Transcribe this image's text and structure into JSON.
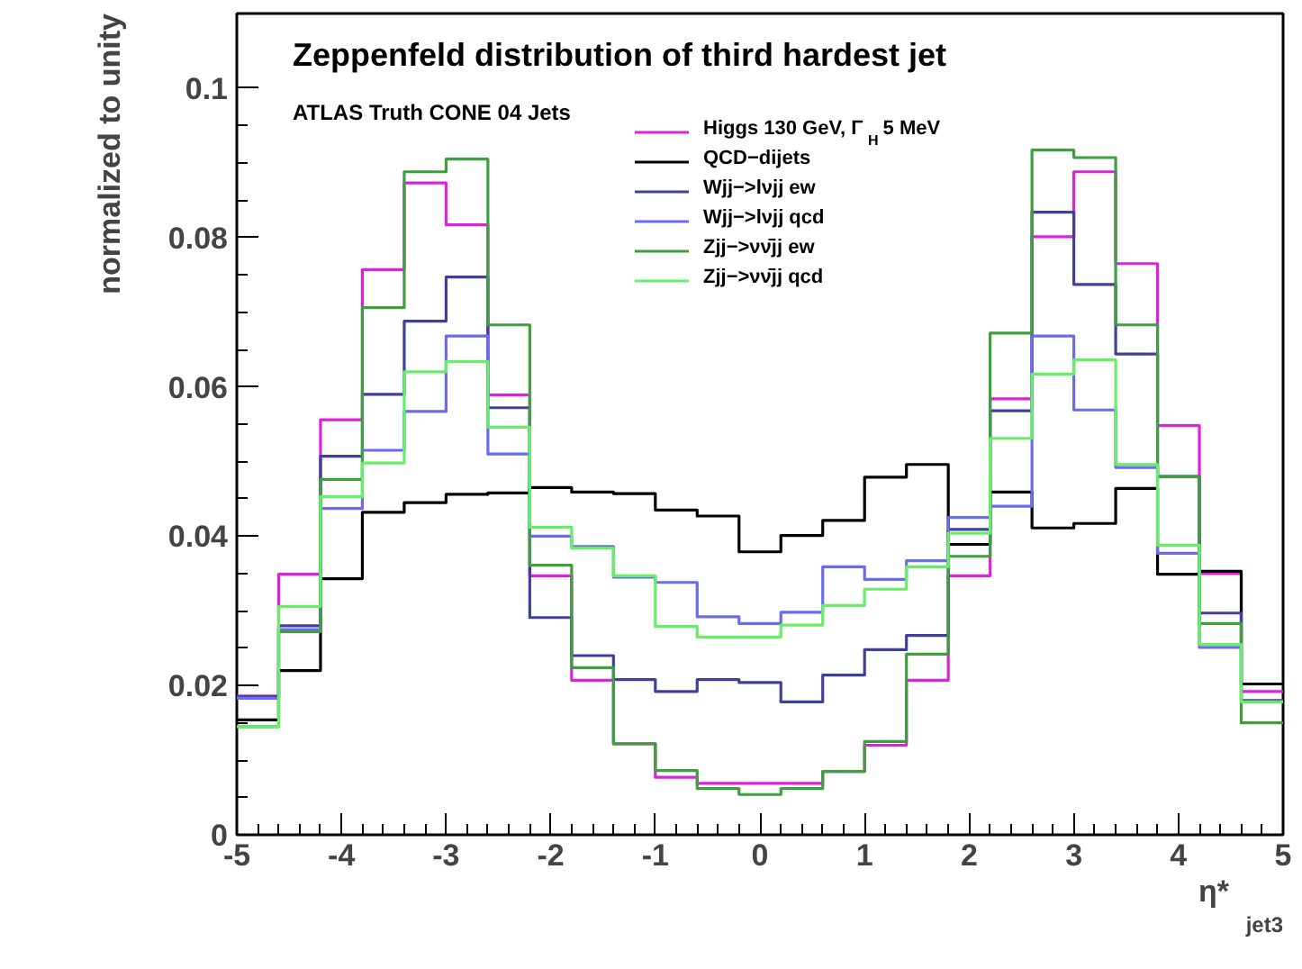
{
  "chart_data": {
    "type": "histogram",
    "title": "Zeppenfeld distribution of third hardest jet",
    "subtitle": "ATLAS Truth CONE 04 Jets",
    "xlabel": "η*$_{jet3}$",
    "ylabel": "normalized to unity",
    "bins": [
      -5,
      -4.6,
      -4.2,
      -3.8,
      -3.4,
      -3.0,
      -2.6,
      -2.2,
      -1.8,
      -1.4,
      -1.0,
      -0.6,
      -0.2,
      0.2,
      0.6,
      1.0,
      1.4,
      1.8,
      2.2,
      2.6,
      3.0,
      3.4,
      3.8,
      4.2,
      4.6,
      5
    ],
    "series": [
      {
        "name": "Higgs 130 GeV, Γ$_{H}$ 5 MeV",
        "color": "#dd22dd",
        "values": [
          0.0186,
          0.0349,
          0.0556,
          0.0757,
          0.0873,
          0.0817,
          0.0589,
          0.0347,
          0.0207,
          0.0122,
          0.0077,
          0.0069,
          0.0069,
          0.0069,
          0.0085,
          0.012,
          0.0207,
          0.0347,
          0.0584,
          0.0801,
          0.0888,
          0.0765,
          0.0548,
          0.035,
          0.0192
        ]
      },
      {
        "name": "QCD−dijets",
        "color": "#000000",
        "values": [
          0.0154,
          0.022,
          0.0343,
          0.0432,
          0.0445,
          0.0456,
          0.0458,
          0.0465,
          0.0459,
          0.0457,
          0.0435,
          0.0427,
          0.0379,
          0.0401,
          0.0421,
          0.0479,
          0.0496,
          0.0389,
          0.0459,
          0.0411,
          0.0417,
          0.0464,
          0.0349,
          0.0353,
          0.0202
        ]
      },
      {
        "name": "Wjj−>lνjj ew",
        "color": "#404099",
        "values": [
          0.0185,
          0.028,
          0.0507,
          0.059,
          0.0688,
          0.0747,
          0.0572,
          0.0291,
          0.024,
          0.0208,
          0.0192,
          0.0208,
          0.0204,
          0.0178,
          0.0214,
          0.0248,
          0.0267,
          0.0409,
          0.0568,
          0.0834,
          0.0737,
          0.0644,
          0.048,
          0.0297,
          0.018
        ]
      },
      {
        "name": "Wjj−>lνjj qcd",
        "color": "#6b6bf0",
        "values": [
          0.0183,
          0.0275,
          0.0437,
          0.0515,
          0.0567,
          0.0668,
          0.051,
          0.04,
          0.0386,
          0.0345,
          0.0338,
          0.0292,
          0.0283,
          0.0298,
          0.0359,
          0.0342,
          0.0367,
          0.0425,
          0.044,
          0.0668,
          0.0569,
          0.0492,
          0.0377,
          0.0251,
          0.0178
        ]
      },
      {
        "name": "Zjj−>νν̄jj ew",
        "color": "#3f9f3f",
        "values": [
          0.0145,
          0.0272,
          0.0476,
          0.0706,
          0.0888,
          0.0905,
          0.0683,
          0.0361,
          0.0224,
          0.0122,
          0.0086,
          0.0062,
          0.0054,
          0.0062,
          0.0085,
          0.0125,
          0.0242,
          0.0373,
          0.0672,
          0.0917,
          0.0907,
          0.0683,
          0.048,
          0.0283,
          0.015
        ]
      },
      {
        "name": "Zjj−>νν̄jj qcd",
        "color": "#66ee66",
        "values": [
          0.0145,
          0.0306,
          0.0453,
          0.0498,
          0.062,
          0.0634,
          0.0546,
          0.0412,
          0.0384,
          0.0347,
          0.0279,
          0.0265,
          0.0265,
          0.0281,
          0.0307,
          0.0329,
          0.0359,
          0.0404,
          0.0531,
          0.0617,
          0.0636,
          0.0496,
          0.0388,
          0.0255,
          0.0178
        ]
      }
    ],
    "xlim": [
      -5,
      5
    ],
    "ylim": [
      0,
      0.11
    ],
    "xticks": [
      -5,
      -4,
      -3,
      -2,
      -1,
      0,
      1,
      2,
      3,
      4,
      5
    ],
    "yticks": [
      0,
      0.02,
      0.04,
      0.06,
      0.08,
      0.1
    ],
    "legend": "top"
  }
}
